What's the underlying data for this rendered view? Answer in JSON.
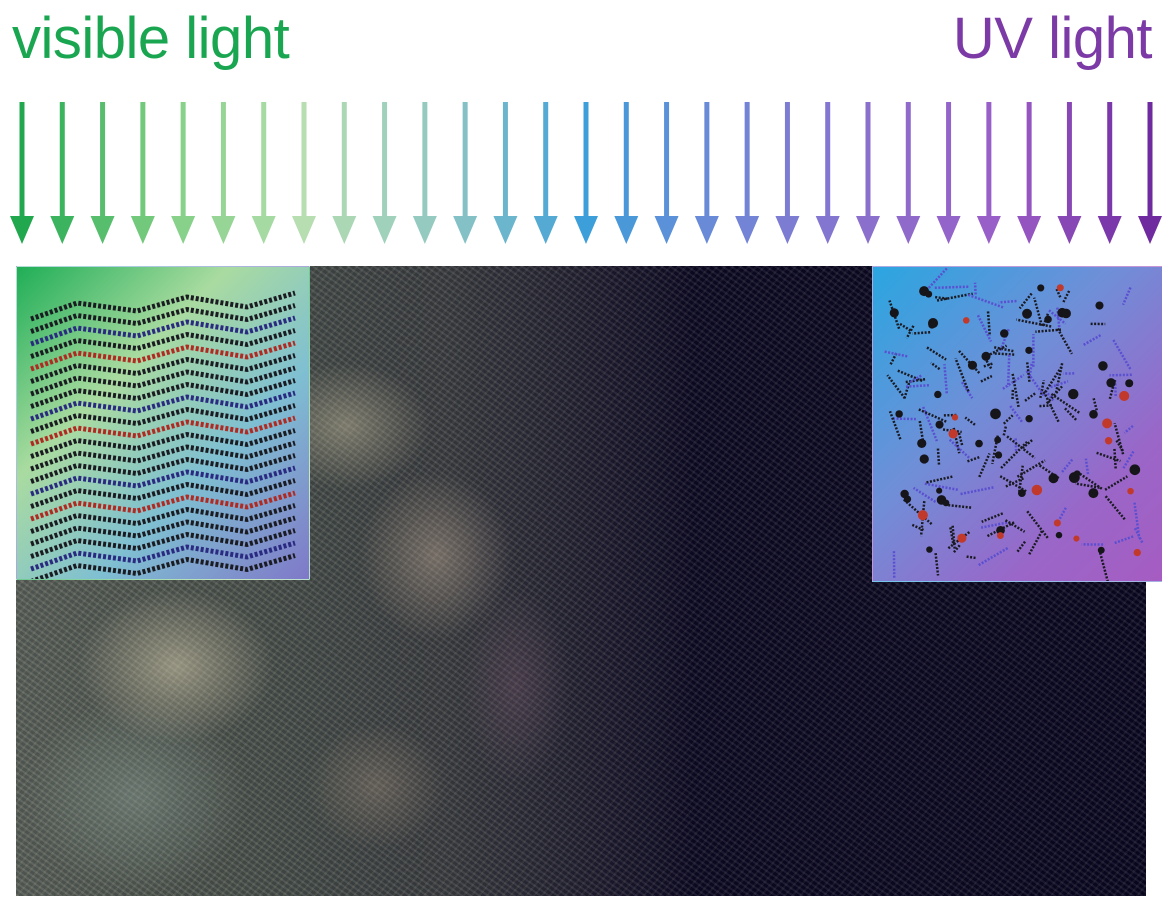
{
  "labels": {
    "left": "visible light",
    "right": "UV light"
  },
  "colors": {
    "visible_green": "#1aa650",
    "uv_purple": "#7b3aa6",
    "arrow_gradient": [
      "#21a84f",
      "#7fcf84",
      "#b6deb0",
      "#8fc7c3",
      "#3d9fda",
      "#6f86d6",
      "#8a6fcd",
      "#9a5cc7",
      "#6e2a9e"
    ]
  },
  "arrows": {
    "count": 29
  },
  "figure": {
    "micrograph": "polarized-light micrograph of crystalline domains fading to dark isotropic region",
    "left_inset": "layered crystalline molecular packing model",
    "right_inset": "disordered amorphous molecular network model"
  }
}
